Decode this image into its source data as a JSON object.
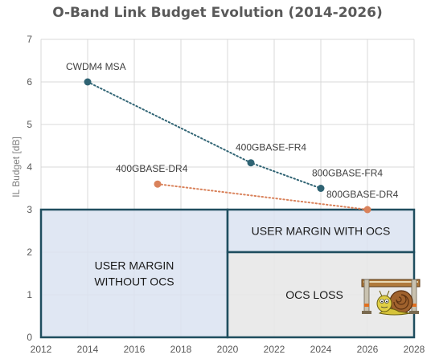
{
  "chart_data": {
    "type": "scatter",
    "title": "O-Band Link Budget Evolution (2014-2026)",
    "xlabel": "",
    "ylabel": "IL Budget [dB]",
    "xlim": [
      2012,
      2028
    ],
    "ylim": [
      0,
      7
    ],
    "x_ticks": [
      "2012",
      "2014",
      "2016",
      "2018",
      "2020",
      "2022",
      "2024",
      "2026",
      "2028"
    ],
    "y_ticks": [
      "0",
      "1",
      "2",
      "3",
      "4",
      "5",
      "6",
      "7"
    ],
    "grid": true,
    "series": [
      {
        "color": "#2f6373",
        "points": [
          {
            "x": 2014,
            "y": 6.0,
            "label": "CWDM4 MSA"
          },
          {
            "x": 2021,
            "y": 4.1,
            "label": "400GBASE-FR4"
          },
          {
            "x": 2024,
            "y": 3.5,
            "label": "800GBASE-FR4"
          }
        ]
      },
      {
        "color": "#d9825b",
        "points": [
          {
            "x": 2017,
            "y": 3.6,
            "label": "400GBASE-DR4"
          },
          {
            "x": 2026,
            "y": 3.0,
            "label": "800GBASE-DR4"
          }
        ]
      }
    ],
    "regions": [
      {
        "x0": 2012,
        "x1": 2020,
        "y0": 0,
        "y1": 3,
        "label": [
          "USER MARGIN",
          "WITHOUT OCS"
        ],
        "fill": "#dbe3f1"
      },
      {
        "x0": 2020,
        "x1": 2028,
        "y0": 2,
        "y1": 3,
        "label": [
          "USER MARGIN WITH OCS"
        ],
        "fill": "#dbe3f1"
      },
      {
        "x0": 2020,
        "x1": 2028,
        "y0": 0,
        "y1": 2,
        "label": [
          "OCS LOSS"
        ],
        "fill": "#e6e6e6"
      }
    ],
    "region_border_color": "#1f4e5f",
    "decoration": "snail-icon"
  }
}
